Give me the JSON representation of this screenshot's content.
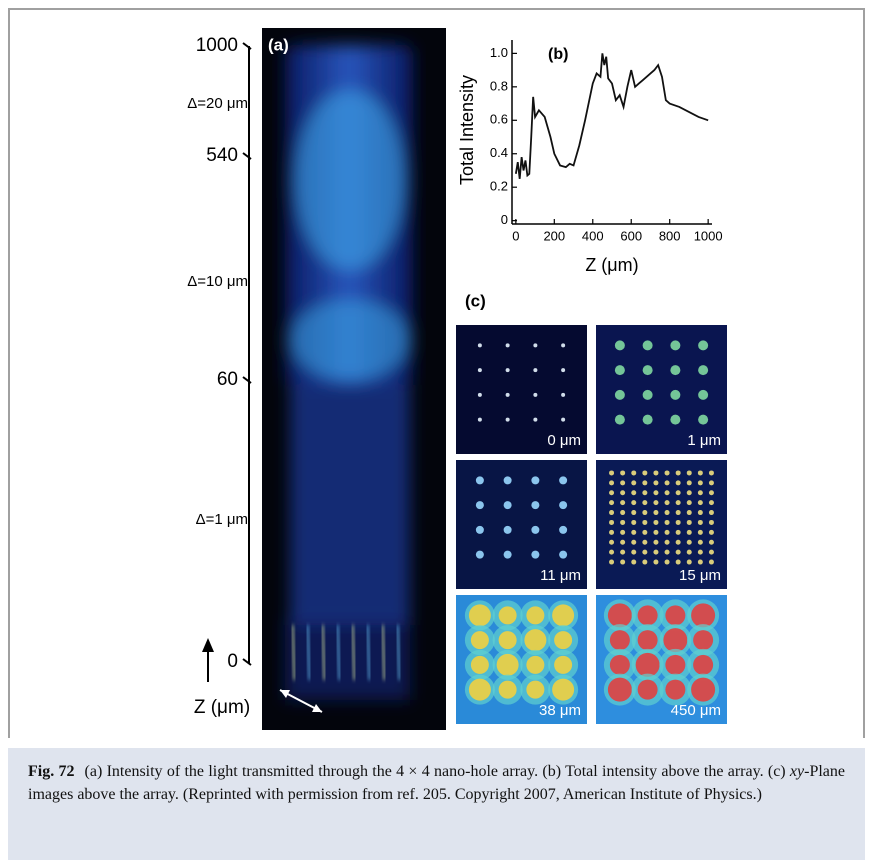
{
  "panel_a": {
    "label": "(a)",
    "z_ticks": [
      1000,
      540,
      60,
      0
    ],
    "spacing_labels": [
      "Δ=20 μm",
      "Δ=10 μm",
      "Δ=1 μm"
    ],
    "axis_label": "Z (μm)"
  },
  "chart_data": {
    "type": "line",
    "panel_label": "(b)",
    "x_label": "Z (μm)",
    "y_label": "Total Intensity",
    "x": [
      0,
      10,
      20,
      30,
      40,
      50,
      60,
      70,
      80,
      90,
      100,
      120,
      150,
      180,
      200,
      230,
      260,
      280,
      300,
      330,
      360,
      400,
      420,
      440,
      450,
      460,
      470,
      480,
      500,
      520,
      540,
      560,
      580,
      600,
      620,
      640,
      660,
      680,
      700,
      720,
      740,
      760,
      780,
      800,
      850,
      900,
      950,
      1000
    ],
    "values": [
      0.28,
      0.35,
      0.25,
      0.38,
      0.3,
      0.36,
      0.27,
      0.28,
      0.5,
      0.74,
      0.62,
      0.66,
      0.62,
      0.5,
      0.4,
      0.33,
      0.32,
      0.34,
      0.33,
      0.45,
      0.6,
      0.82,
      0.88,
      0.86,
      1.0,
      0.93,
      0.98,
      0.85,
      0.82,
      0.72,
      0.75,
      0.68,
      0.8,
      0.9,
      0.8,
      0.82,
      0.84,
      0.86,
      0.88,
      0.9,
      0.93,
      0.86,
      0.72,
      0.7,
      0.68,
      0.65,
      0.62,
      0.6
    ],
    "color": "#111111",
    "xlim": [
      -20,
      1020
    ],
    "ylim": [
      -0.02,
      1.08
    ],
    "xticks": [
      0,
      200,
      400,
      600,
      800,
      1000
    ],
    "yticks": [
      0,
      0.2,
      0.4,
      0.6,
      0.8,
      {
        "value": 1,
        "label": "1.0"
      }
    ]
  },
  "panel_c": {
    "label": "(c)",
    "images": [
      "0 μm",
      "1 μm",
      "11 μm",
      "15 μm",
      "38 μm",
      "450 μm"
    ]
  },
  "caption": {
    "label": "Fig. 72",
    "text_before": "(a) Intensity of the light transmitted through the 4 × 4 nano-hole array. (b) Total intensity above the array. (c) ",
    "italic": "xy",
    "text_after": "-Plane images above the array. (Reprinted with permission from ref. 205. Copyright 2007, American Institute of Physics.)"
  }
}
